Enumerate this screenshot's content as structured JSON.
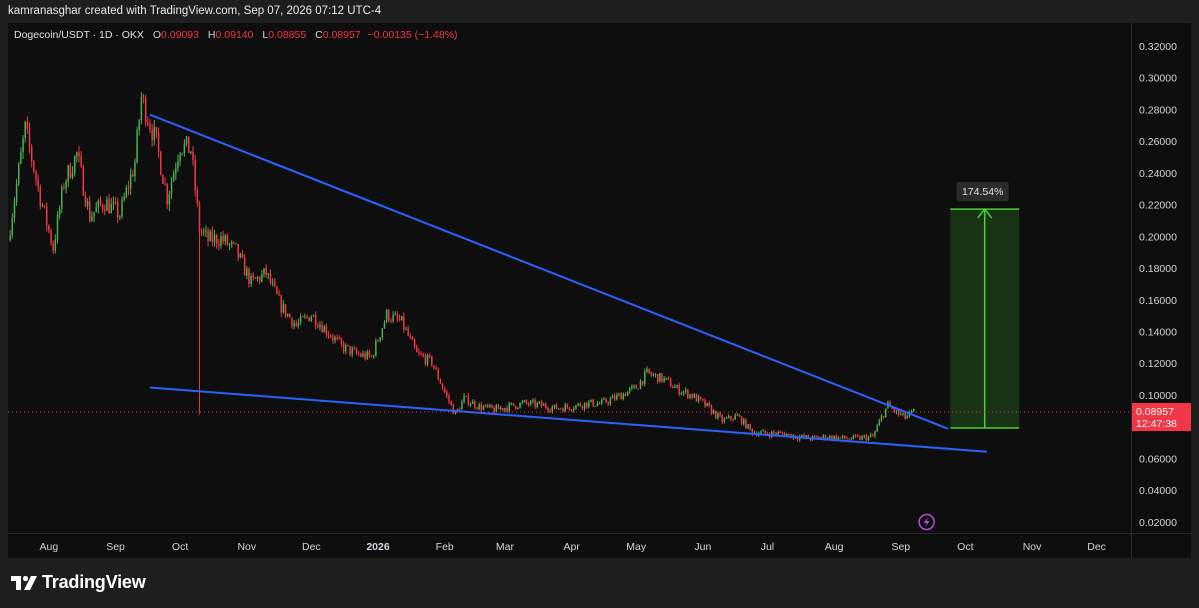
{
  "header": {
    "attribution": "kamranasghar created with TradingView.com, Sep 07, 2026 07:12 UTC-4"
  },
  "legend": {
    "symbol": "Dogecoin/USDT · 1D · OKX",
    "open_label": "O",
    "open": "0.09093",
    "high_label": "H",
    "high": "0.09140",
    "low_label": "L",
    "low": "0.08855",
    "close_label": "C",
    "close": "0.08957",
    "change": "−0.00135 (−1.48%)"
  },
  "price_tag": {
    "price": "0.08957",
    "countdown": "12:47:38"
  },
  "measure_label": "174.54%",
  "footer": {
    "brand": "TradingView"
  },
  "colors": {
    "up": "#26a69a",
    "up_candle": "#4caf50",
    "down": "#f23645",
    "trendline": "#2962ff",
    "measure_fill": "#1b3a17",
    "measure_line": "#4cd137",
    "background": "#0e0e0e"
  },
  "icons": [
    "lightning-icon",
    "tradingview-logo-icon"
  ],
  "chart_data": {
    "type": "candlestick",
    "symbol": "Dogecoin/USDT",
    "interval": "1D",
    "exchange": "OKX",
    "ylim": [
      0.01,
      0.33
    ],
    "y_ticks": [
      "0.02000",
      "0.04000",
      "0.06000",
      "0.08000",
      "0.10000",
      "0.12000",
      "0.14000",
      "0.16000",
      "0.18000",
      "0.20000",
      "0.22000",
      "0.24000",
      "0.26000",
      "0.28000",
      "0.30000",
      "0.32000"
    ],
    "x_ticks": [
      "Aug",
      "Sep",
      "Oct",
      "Nov",
      "Dec",
      "2026",
      "Feb",
      "Mar",
      "Apr",
      "May",
      "Jun",
      "Jul",
      "Aug",
      "Sep",
      "Oct",
      "Nov",
      "Dec"
    ],
    "x_range": [
      "2025-07-13",
      "2026-12-17"
    ],
    "current_price": 0.08957,
    "price_path": [
      {
        "date": "2025-07-13",
        "price": 0.198
      },
      {
        "date": "2025-07-21",
        "price": 0.268
      },
      {
        "date": "2025-07-28",
        "price": 0.225
      },
      {
        "date": "2025-08-03",
        "price": 0.193
      },
      {
        "date": "2025-08-08",
        "price": 0.234
      },
      {
        "date": "2025-08-14",
        "price": 0.252
      },
      {
        "date": "2025-08-20",
        "price": 0.213
      },
      {
        "date": "2025-08-27",
        "price": 0.222
      },
      {
        "date": "2025-09-03",
        "price": 0.214
      },
      {
        "date": "2025-09-10",
        "price": 0.247
      },
      {
        "date": "2025-09-13",
        "price": 0.288
      },
      {
        "date": "2025-09-20",
        "price": 0.259
      },
      {
        "date": "2025-09-25",
        "price": 0.225
      },
      {
        "date": "2025-10-01",
        "price": 0.258
      },
      {
        "date": "2025-10-06",
        "price": 0.255
      },
      {
        "date": "2025-10-10",
        "price": 0.205
      },
      {
        "date": "2025-10-14",
        "price": 0.198
      },
      {
        "date": "2025-10-20",
        "price": 0.199
      },
      {
        "date": "2025-10-27",
        "price": 0.191
      },
      {
        "date": "2025-11-03",
        "price": 0.171
      },
      {
        "date": "2025-11-10",
        "price": 0.177
      },
      {
        "date": "2025-11-17",
        "price": 0.156
      },
      {
        "date": "2025-11-24",
        "price": 0.144
      },
      {
        "date": "2025-12-01",
        "price": 0.151
      },
      {
        "date": "2025-12-08",
        "price": 0.141
      },
      {
        "date": "2025-12-15",
        "price": 0.131
      },
      {
        "date": "2025-12-22",
        "price": 0.126
      },
      {
        "date": "2025-12-29",
        "price": 0.124
      },
      {
        "date": "2026-01-05",
        "price": 0.151
      },
      {
        "date": "2026-01-12",
        "price": 0.146
      },
      {
        "date": "2026-01-19",
        "price": 0.126
      },
      {
        "date": "2026-01-26",
        "price": 0.121
      },
      {
        "date": "2026-02-01",
        "price": 0.102
      },
      {
        "date": "2026-02-06",
        "price": 0.088
      },
      {
        "date": "2026-02-10",
        "price": 0.098
      },
      {
        "date": "2026-02-17",
        "price": 0.093
      },
      {
        "date": "2026-02-24",
        "price": 0.091
      },
      {
        "date": "2026-03-03",
        "price": 0.093
      },
      {
        "date": "2026-03-10",
        "price": 0.095
      },
      {
        "date": "2026-03-17",
        "price": 0.094
      },
      {
        "date": "2026-03-24",
        "price": 0.092
      },
      {
        "date": "2026-04-01",
        "price": 0.093
      },
      {
        "date": "2026-04-08",
        "price": 0.095
      },
      {
        "date": "2026-04-15",
        "price": 0.095
      },
      {
        "date": "2026-04-22",
        "price": 0.099
      },
      {
        "date": "2026-05-01",
        "price": 0.105
      },
      {
        "date": "2026-05-06",
        "price": 0.114
      },
      {
        "date": "2026-05-14",
        "price": 0.11
      },
      {
        "date": "2026-05-20",
        "price": 0.104
      },
      {
        "date": "2026-05-27",
        "price": 0.1
      },
      {
        "date": "2026-06-03",
        "price": 0.093
      },
      {
        "date": "2026-06-10",
        "price": 0.084
      },
      {
        "date": "2026-06-17",
        "price": 0.087
      },
      {
        "date": "2026-06-24",
        "price": 0.077
      },
      {
        "date": "2026-07-01",
        "price": 0.076
      },
      {
        "date": "2026-07-08",
        "price": 0.076
      },
      {
        "date": "2026-07-15",
        "price": 0.074
      },
      {
        "date": "2026-07-22",
        "price": 0.073
      },
      {
        "date": "2026-07-29",
        "price": 0.074
      },
      {
        "date": "2026-08-05",
        "price": 0.073
      },
      {
        "date": "2026-08-12",
        "price": 0.073
      },
      {
        "date": "2026-08-19",
        "price": 0.074
      },
      {
        "date": "2026-08-23",
        "price": 0.086
      },
      {
        "date": "2026-08-26",
        "price": 0.094
      },
      {
        "date": "2026-08-30",
        "price": 0.089
      },
      {
        "date": "2026-09-03",
        "price": 0.086
      },
      {
        "date": "2026-09-07",
        "price": 0.0896
      }
    ],
    "trendlines": [
      {
        "name": "upper",
        "from": {
          "date": "2025-09-17",
          "price": 0.277
        },
        "to": {
          "date": "2026-09-23",
          "price": 0.079
        }
      },
      {
        "name": "lower",
        "from": {
          "date": "2025-09-17",
          "price": 0.105
        },
        "to": {
          "date": "2026-10-11",
          "price": 0.0645
        }
      }
    ],
    "projection": {
      "from_date": "2026-09-24",
      "to_date": "2026-10-26",
      "start_price": 0.0795,
      "target_price": 0.2175,
      "label": "174.54%"
    }
  }
}
